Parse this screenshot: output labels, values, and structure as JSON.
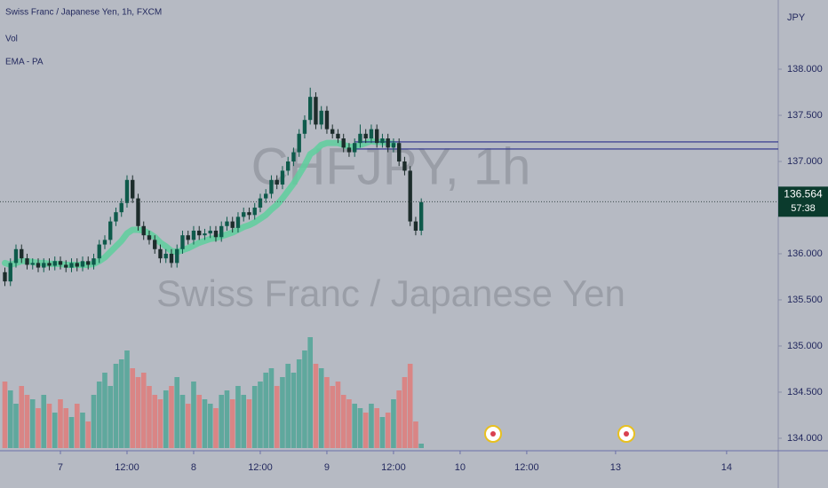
{
  "chart_data": {
    "type": "candlestick",
    "title": "Swiss Franc / Japanese Yen, 1h, FXCM",
    "indicators": [
      "Vol",
      "EMA - PA"
    ],
    "watermark": "CHFJPY, 1h",
    "watermark_subtitle": "Swiss Franc / Japanese Yen",
    "y_axis_label": "JPY",
    "open": [
      135.8,
      135.7,
      135.9,
      136.05,
      135.95,
      135.88,
      135.9,
      135.85,
      135.9,
      135.87,
      135.92,
      135.88,
      135.85,
      135.9,
      135.86,
      135.92,
      135.88,
      135.95,
      136.1,
      136.15,
      136.35,
      136.45,
      136.55,
      136.8,
      136.6,
      136.3,
      136.2,
      136.15,
      136.05,
      135.95,
      136.0,
      135.9,
      136.05,
      136.2,
      136.15,
      136.25,
      136.2,
      136.22,
      136.25,
      136.18,
      136.3,
      136.35,
      136.28,
      136.4,
      136.45,
      136.42,
      136.5,
      136.6,
      136.65,
      136.8,
      136.75,
      136.9,
      137.0,
      137.1,
      137.3,
      137.45,
      137.7,
      137.4,
      137.55,
      137.35,
      137.3,
      137.25,
      137.15,
      137.1,
      137.2,
      137.3,
      137.25,
      137.35,
      137.2,
      137.25,
      137.15,
      137.2,
      137.0,
      136.9,
      136.35,
      136.25
    ],
    "high": [
      135.85,
      135.95,
      136.1,
      136.1,
      136.0,
      135.95,
      135.95,
      135.95,
      135.95,
      135.97,
      135.97,
      135.93,
      135.95,
      135.95,
      135.97,
      135.97,
      136.0,
      136.15,
      136.2,
      136.4,
      136.5,
      136.6,
      136.85,
      136.85,
      136.65,
      136.35,
      136.25,
      136.2,
      136.1,
      136.05,
      136.05,
      136.1,
      136.25,
      136.25,
      136.3,
      136.3,
      136.27,
      136.3,
      136.3,
      136.35,
      136.4,
      136.4,
      136.45,
      136.5,
      136.5,
      136.55,
      136.65,
      136.7,
      136.85,
      136.85,
      136.95,
      137.05,
      137.15,
      137.35,
      137.5,
      137.8,
      137.75,
      137.6,
      137.6,
      137.4,
      137.35,
      137.3,
      137.2,
      137.25,
      137.4,
      137.35,
      137.4,
      137.4,
      137.3,
      137.3,
      137.25,
      137.25,
      137.05,
      136.95,
      136.4,
      136.6
    ],
    "low": [
      135.65,
      135.65,
      135.85,
      135.9,
      135.83,
      135.83,
      135.8,
      135.8,
      135.82,
      135.82,
      135.83,
      135.8,
      135.8,
      135.81,
      135.81,
      135.83,
      135.83,
      135.9,
      136.05,
      136.1,
      136.3,
      136.4,
      136.5,
      136.55,
      136.25,
      136.15,
      136.1,
      136.0,
      135.9,
      135.9,
      135.85,
      135.85,
      136.0,
      136.1,
      136.1,
      136.15,
      136.15,
      136.17,
      136.13,
      136.13,
      136.25,
      136.23,
      136.23,
      136.35,
      136.37,
      136.37,
      136.45,
      136.55,
      136.6,
      136.7,
      136.7,
      136.85,
      136.95,
      137.05,
      137.25,
      137.4,
      137.35,
      137.35,
      137.3,
      137.25,
      137.2,
      137.1,
      137.05,
      137.05,
      137.15,
      137.2,
      137.2,
      137.15,
      137.15,
      137.1,
      137.1,
      136.95,
      136.85,
      136.3,
      136.2,
      136.2
    ],
    "close": [
      135.7,
      135.9,
      136.05,
      135.95,
      135.88,
      135.9,
      135.85,
      135.9,
      135.87,
      135.92,
      135.88,
      135.85,
      135.9,
      135.86,
      135.92,
      135.88,
      135.95,
      136.1,
      136.15,
      136.35,
      136.45,
      136.55,
      136.8,
      136.6,
      136.3,
      136.2,
      136.15,
      136.05,
      135.95,
      136.0,
      135.9,
      136.05,
      136.2,
      136.15,
      136.25,
      136.2,
      136.22,
      136.25,
      136.18,
      136.3,
      136.35,
      136.28,
      136.4,
      136.45,
      136.42,
      136.5,
      136.6,
      136.65,
      136.8,
      136.75,
      136.9,
      137.0,
      137.1,
      137.3,
      137.45,
      137.7,
      137.4,
      137.55,
      137.35,
      137.3,
      137.25,
      137.15,
      137.1,
      137.2,
      137.3,
      137.25,
      137.35,
      137.2,
      137.25,
      137.15,
      137.2,
      137.0,
      136.9,
      136.35,
      136.25,
      136.56
    ],
    "volume": [
      75,
      65,
      50,
      70,
      60,
      55,
      45,
      60,
      50,
      40,
      55,
      45,
      35,
      50,
      40,
      30,
      60,
      75,
      85,
      70,
      95,
      100,
      110,
      90,
      80,
      85,
      70,
      60,
      55,
      65,
      70,
      80,
      60,
      50,
      75,
      60,
      55,
      50,
      45,
      60,
      65,
      55,
      70,
      60,
      55,
      70,
      75,
      85,
      90,
      70,
      80,
      95,
      85,
      100,
      110,
      125,
      95,
      90,
      80,
      70,
      75,
      60,
      55,
      50,
      45,
      40,
      50,
      45,
      35,
      40,
      55,
      65,
      80,
      95,
      30,
      5
    ],
    "ema": [
      135.9,
      135.88,
      135.9,
      135.92,
      135.92,
      135.91,
      135.9,
      135.9,
      135.89,
      135.89,
      135.89,
      135.88,
      135.88,
      135.88,
      135.88,
      135.88,
      135.89,
      135.92,
      135.96,
      136.02,
      136.08,
      136.14,
      136.22,
      136.26,
      136.26,
      136.25,
      136.22,
      136.18,
      136.12,
      136.08,
      136.03,
      136.02,
      136.04,
      136.06,
      136.09,
      136.12,
      136.14,
      136.16,
      136.17,
      136.19,
      136.21,
      136.23,
      136.26,
      136.29,
      136.31,
      136.34,
      136.38,
      136.42,
      136.48,
      136.53,
      136.6,
      136.68,
      136.76,
      136.86,
      136.96,
      137.08,
      137.12,
      137.18,
      137.2,
      137.2,
      137.2,
      137.18,
      137.16,
      137.16,
      137.18,
      137.2,
      137.22,
      137.21,
      137.21,
      137.2,
      137.19,
      null,
      null,
      null,
      null,
      null
    ],
    "levels": [
      137.212,
      137.135
    ],
    "current_price": 136.564,
    "countdown": "57:38",
    "up_color": "#0e5a4b",
    "down_color": "#1c2c2b",
    "vol_up_color": "#5fa89d",
    "vol_down_color": "#d98585",
    "ema_color": "#5ecf9e",
    "level_color": "#2a2f8a",
    "xlim": [
      -0.88,
      139.3
    ],
    "ylim": [
      133.865,
      138.75
    ],
    "xticks": [
      {
        "value": 10,
        "label": "7"
      },
      {
        "value": 22,
        "label": "12:00"
      },
      {
        "value": 34,
        "label": "8"
      },
      {
        "value": 46,
        "label": "12:00"
      },
      {
        "value": 58,
        "label": "9"
      },
      {
        "value": 70,
        "label": "12:00"
      },
      {
        "value": 82,
        "label": "10"
      },
      {
        "value": 94,
        "label": "12:00"
      },
      {
        "value": 110,
        "label": "13"
      },
      {
        "value": 130,
        "label": "14"
      }
    ],
    "yticks": [
      {
        "value": 134,
        "label": "134.000"
      },
      {
        "value": 134.5,
        "label": "134.500"
      },
      {
        "value": 135,
        "label": "135.000"
      },
      {
        "value": 135.5,
        "label": "135.500"
      },
      {
        "value": 136,
        "label": "136.000"
      },
      {
        "value": 136.5,
        "label": "136.500"
      },
      {
        "value": 137,
        "label": "137.000"
      },
      {
        "value": 137.5,
        "label": "137.500"
      },
      {
        "value": 138,
        "label": "138.000"
      }
    ]
  }
}
